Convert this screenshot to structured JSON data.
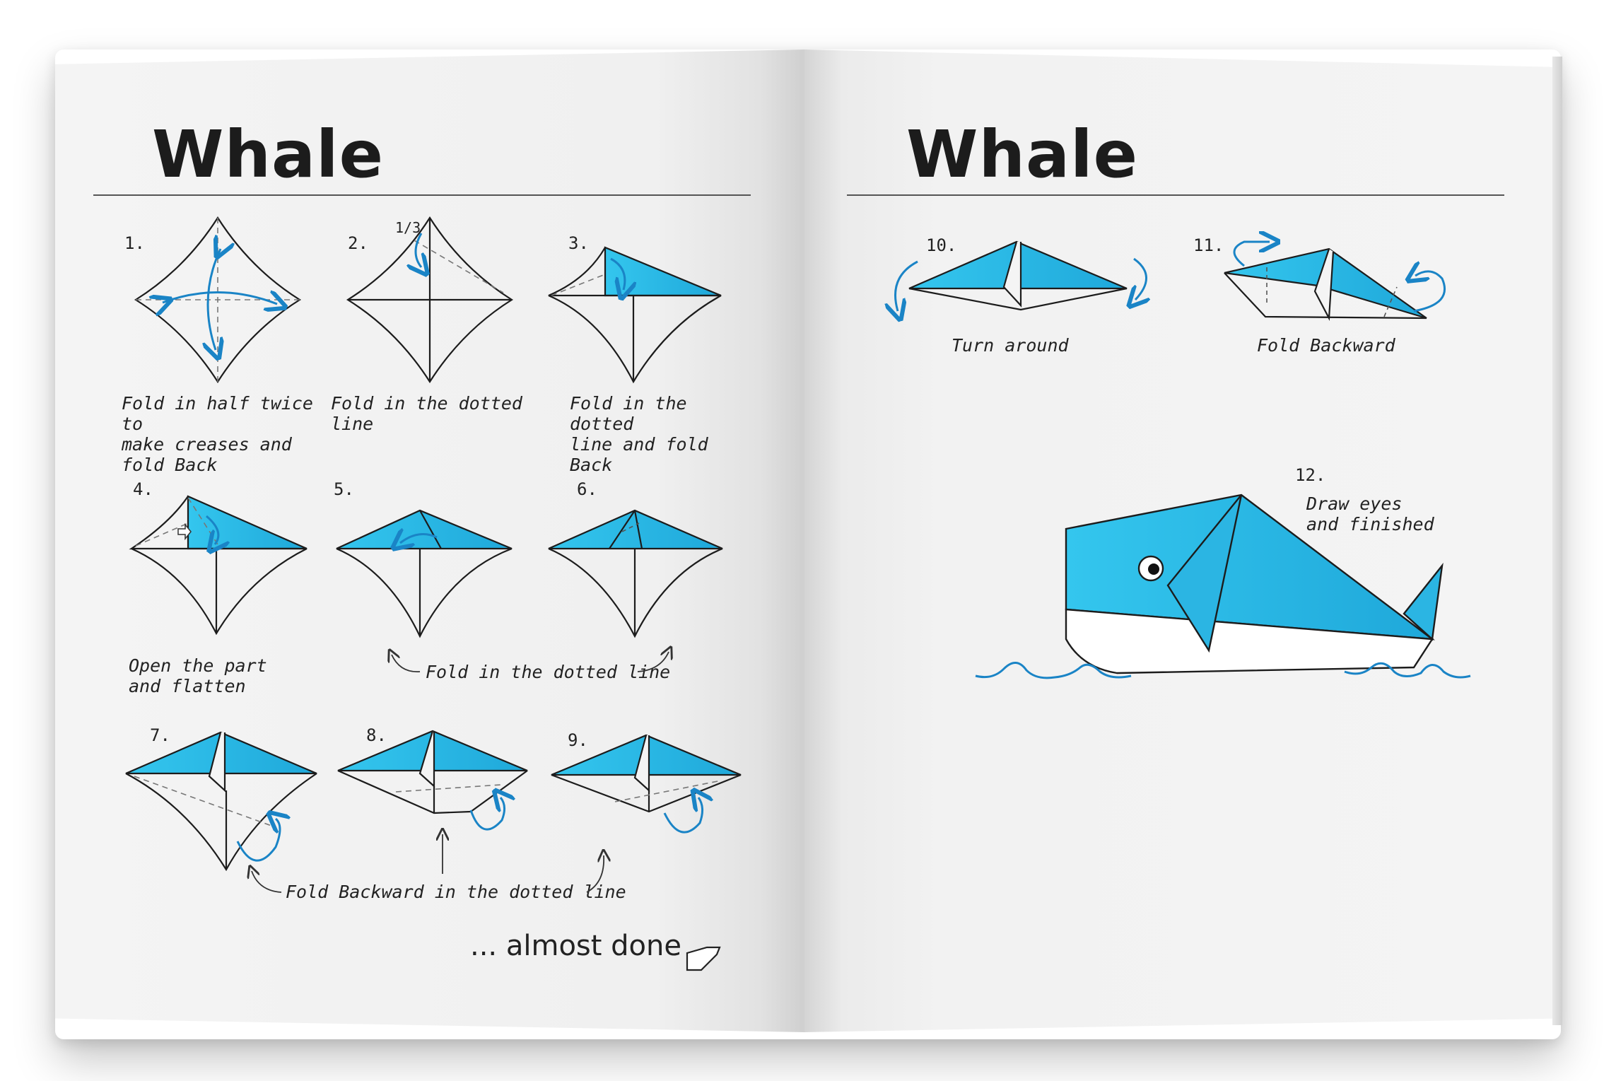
{
  "left_page": {
    "title": "Whale",
    "steps": [
      {
        "num": "1.",
        "caption": "Fold in half twice to\nmake creases and\nfold Back"
      },
      {
        "num": "2.",
        "caption": "Fold in the dotted line",
        "note": "1/3"
      },
      {
        "num": "3.",
        "caption": "Fold in the  dotted\nline and fold Back"
      },
      {
        "num": "4.",
        "caption": "Open the    part\nand flatten"
      },
      {
        "num": "5."
      },
      {
        "num": "6."
      },
      {
        "num": "7."
      },
      {
        "num": "8."
      },
      {
        "num": "9."
      }
    ],
    "caption_5_6": "Fold in the dotted line",
    "caption_7_9": "Fold Backward in the dotted line",
    "footer": "... almost done"
  },
  "right_page": {
    "title": "Whale",
    "steps": [
      {
        "num": "10.",
        "caption": "Turn around"
      },
      {
        "num": "11.",
        "caption": "Fold Backward"
      },
      {
        "num": "12.",
        "caption": "Draw eyes\nand finished"
      }
    ]
  },
  "colors": {
    "paper": "#f2f2f2",
    "ink": "#1c1c1c",
    "accent_blue": "#2bb5e3",
    "arrow_blue": "#1a84c6"
  },
  "icons": [
    "fold-arrow-icon",
    "hand-icon",
    "wave-icon"
  ]
}
